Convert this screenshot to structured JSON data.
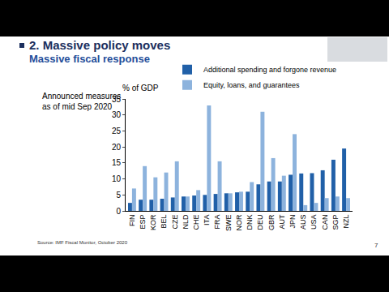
{
  "slide": {
    "heading": "2. Massive policy moves",
    "subheading": "Massive fiscal response",
    "page": "7"
  },
  "chart_data": {
    "type": "bar",
    "y_label": "% of GDP",
    "annotations": [
      "Announced measures as of mid Sep 2020",
      "Source: IMF Fiscal Monitor, October 2020"
    ],
    "categories": [
      "FIN",
      "ESP",
      "KOR",
      "BEL",
      "CZE",
      "NLD",
      "CHE",
      "ITA",
      "FRA",
      "SWE",
      "NOR",
      "DNK",
      "DEU",
      "GBR",
      "AUT",
      "JPN",
      "AUS",
      "USA",
      "CAN",
      "SGP",
      "NZL"
    ],
    "series": [
      {
        "name": "Additional spending and forgone revenue",
        "color": "#2160a8",
        "values": [
          2.5,
          3.5,
          3.5,
          3.8,
          4.2,
          4.5,
          4.8,
          5,
          5.3,
          5.5,
          5.8,
          6,
          8.3,
          9.2,
          9.2,
          11.3,
          11.7,
          11.8,
          12.7,
          16,
          19.5
        ]
      },
      {
        "name": "Equity, loans, and guarantees",
        "color": "#8db3dd",
        "values": [
          7,
          14,
          10.5,
          12,
          15.5,
          4.5,
          6.5,
          33,
          15.5,
          5.5,
          6,
          9,
          31,
          16.5,
          11,
          24,
          1.8,
          2.5,
          4,
          4.5,
          4
        ]
      }
    ],
    "ylim": [
      0,
      35
    ],
    "yticks": [
      0,
      5,
      10,
      15,
      20,
      25,
      30,
      35
    ],
    "grid": false,
    "legend": "top"
  }
}
